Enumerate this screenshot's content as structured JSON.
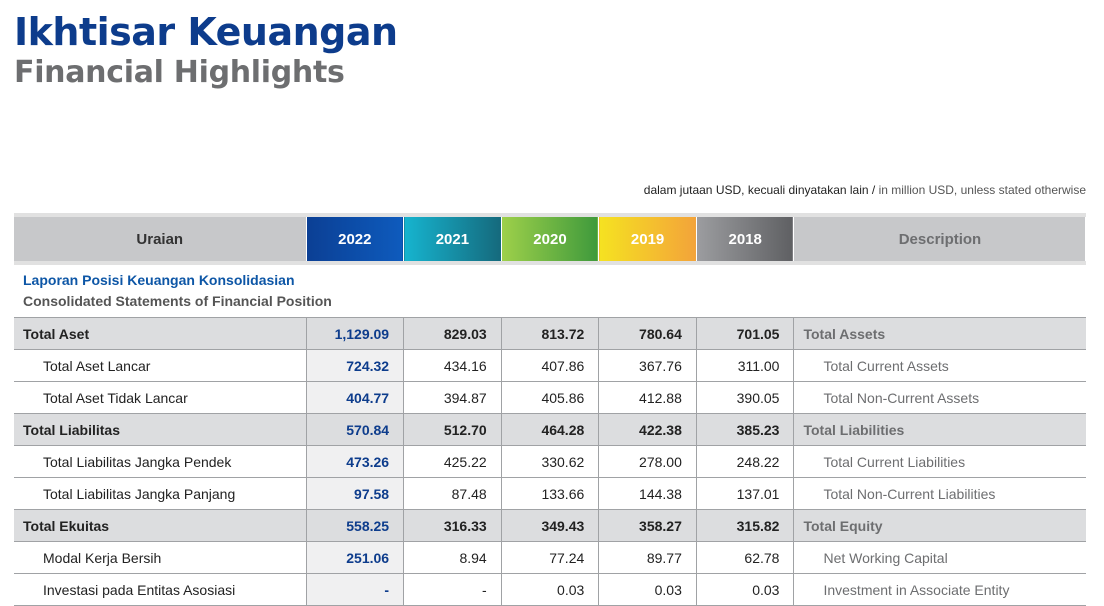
{
  "title_id": "Ikhtisar Keuangan",
  "title_en": "Financial Highlights",
  "unit_note": {
    "id": "dalam jutaan USD, kecuali dinyatakan lain",
    "sep": " / ",
    "en": "in million USD, unless stated otherwise"
  },
  "header": {
    "uraian": "Uraian",
    "years": [
      "2022",
      "2021",
      "2020",
      "2019",
      "2018"
    ],
    "description": "Description"
  },
  "section": {
    "id": "Laporan Posisi Keuangan Konsolidasian",
    "en": "Consolidated Statements of Financial Position"
  },
  "rows": [
    {
      "type": "total",
      "label": "Total Aset",
      "values": [
        "1,129.09",
        "829.03",
        "813.72",
        "780.64",
        "701.05"
      ],
      "desc": "Total Assets"
    },
    {
      "type": "sub",
      "label": "Total Aset Lancar",
      "values": [
        "724.32",
        "434.16",
        "407.86",
        "367.76",
        "311.00"
      ],
      "desc": "Total Current Assets"
    },
    {
      "type": "sub",
      "label": "Total Aset Tidak Lancar",
      "values": [
        "404.77",
        "394.87",
        "405.86",
        "412.88",
        "390.05"
      ],
      "desc": "Total Non-Current Assets"
    },
    {
      "type": "total",
      "label": "Total Liabilitas",
      "values": [
        "570.84",
        "512.70",
        "464.28",
        "422.38",
        "385.23"
      ],
      "desc": "Total Liabilities"
    },
    {
      "type": "sub",
      "label": "Total Liabilitas Jangka Pendek",
      "values": [
        "473.26",
        "425.22",
        "330.62",
        "278.00",
        "248.22"
      ],
      "desc": "Total Current Liabilities"
    },
    {
      "type": "sub",
      "label": "Total Liabilitas Jangka Panjang",
      "values": [
        "97.58",
        "87.48",
        "133.66",
        "144.38",
        "137.01"
      ],
      "desc": "Total Non-Current Liabilities"
    },
    {
      "type": "total",
      "label": "Total Ekuitas",
      "values": [
        "558.25",
        "316.33",
        "349.43",
        "358.27",
        "315.82"
      ],
      "desc": "Total Equity"
    },
    {
      "type": "sub",
      "label": "Modal Kerja Bersih",
      "values": [
        "251.06",
        "8.94",
        "77.24",
        "89.77",
        "62.78"
      ],
      "desc": "Net Working Capital"
    },
    {
      "type": "sub",
      "label": "Investasi pada Entitas Asosiasi",
      "values": [
        "-",
        "-",
        "0.03",
        "0.03",
        "0.03"
      ],
      "desc": "Investment in Associate Entity"
    }
  ]
}
